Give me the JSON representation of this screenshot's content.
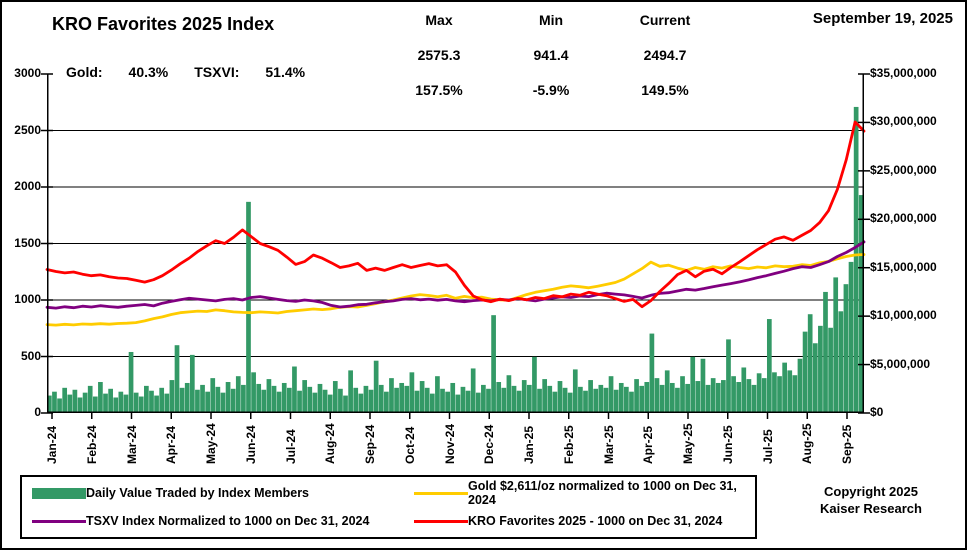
{
  "header": {
    "title": "KRO Favorites 2025 Index",
    "date": "September 19, 2025",
    "perf": {
      "gold_label": "Gold:",
      "gold_value": "40.3%",
      "tsxvi_label": "TSXVI:",
      "tsxvi_value": "51.4%"
    },
    "stats": {
      "max": {
        "header": "Max",
        "value": "2575.3",
        "percent": "157.5%"
      },
      "min": {
        "header": "Min",
        "value": "941.4",
        "percent": "-5.9%"
      },
      "current": {
        "header": "Current",
        "value": "2494.7",
        "percent": "149.5%"
      }
    }
  },
  "footer": {
    "copyright_line1": "Copyright 2025",
    "copyright_line2": "Kaiser Research"
  },
  "chart_data": {
    "type": "combo",
    "title": "KRO Favorites 2025 Index",
    "grid": "horizontal",
    "left_axis": {
      "min": 0,
      "max": 3000,
      "step": 500,
      "tick_labels": [
        "3000",
        "2500",
        "2000",
        "1500",
        "1000",
        "500",
        "0"
      ]
    },
    "right_axis": {
      "min": 0,
      "max": 35000000,
      "step": 5000000,
      "tick_labels": [
        "$35,000,000",
        "$30,000,000",
        "$25,000,000",
        "$20,000,000",
        "$15,000,000",
        "$10,000,000",
        "$5,000,000",
        "$0"
      ]
    },
    "x_axis": {
      "month_labels": [
        "Jan-24",
        "Feb-24",
        "Mar-24",
        "Apr-24",
        "May-24",
        "Jun-24",
        "Jul-24",
        "Aug-24",
        "Sep-24",
        "Oct-24",
        "Nov-24",
        "Dec-24",
        "Jan-25",
        "Feb-25",
        "Mar-25",
        "Apr-25",
        "May-25",
        "Jun-25",
        "Jul-25",
        "Aug-25",
        "Sep-25"
      ]
    },
    "series": [
      {
        "name": "Daily Value Traded by Index Members",
        "type": "bar",
        "axis": "right",
        "color": "#339966",
        "values_millions": [
          1.8,
          2.2,
          1.5,
          2.6,
          1.9,
          2.4,
          1.6,
          2.1,
          2.8,
          1.7,
          3.2,
          2.0,
          2.5,
          1.6,
          2.2,
          1.9,
          6.3,
          2.1,
          1.7,
          2.8,
          2.3,
          1.8,
          2.6,
          2.0,
          3.4,
          7.0,
          2.6,
          3.1,
          6.0,
          2.4,
          2.9,
          2.2,
          3.6,
          2.7,
          2.1,
          3.2,
          2.5,
          3.8,
          2.9,
          21.8,
          4.2,
          3.0,
          2.4,
          3.5,
          2.8,
          2.2,
          3.1,
          2.6,
          4.8,
          2.3,
          3.4,
          2.7,
          2.1,
          3.0,
          2.4,
          1.9,
          3.3,
          2.5,
          1.8,
          4.4,
          2.6,
          2.0,
          2.8,
          2.4,
          5.4,
          2.9,
          2.2,
          3.6,
          2.6,
          3.1,
          2.8,
          4.2,
          2.3,
          3.3,
          2.6,
          2.0,
          3.8,
          2.5,
          2.2,
          3.1,
          1.9,
          2.7,
          2.3,
          4.6,
          2.1,
          2.9,
          2.5,
          10.1,
          3.2,
          2.6,
          3.9,
          2.8,
          2.3,
          3.4,
          2.9,
          5.8,
          2.5,
          3.5,
          2.8,
          2.2,
          3.3,
          2.6,
          2.1,
          4.5,
          2.7,
          2.3,
          3.4,
          2.5,
          2.9,
          2.6,
          3.8,
          2.4,
          3.1,
          2.7,
          2.2,
          3.5,
          2.8,
          3.2,
          8.2,
          3.6,
          2.9,
          4.4,
          3.1,
          2.6,
          3.8,
          3.0,
          5.8,
          3.3,
          5.6,
          2.9,
          3.6,
          3.1,
          3.4,
          7.6,
          3.8,
          3.2,
          4.7,
          3.5,
          2.9,
          4.1,
          3.6,
          9.7,
          4.2,
          3.8,
          5.2,
          4.4,
          3.9,
          5.6,
          8.4,
          10.2,
          7.2,
          9.0,
          12.5,
          8.8,
          14.0,
          10.5,
          13.3,
          15.6,
          31.6,
          22.5
        ]
      },
      {
        "name": "Gold $2,611/oz normalized to 1000 on Dec 31, 2024",
        "type": "line",
        "axis": "left",
        "color": "#FFCC00",
        "values": [
          782,
          778,
          785,
          780,
          788,
          785,
          790,
          786,
          792,
          795,
          800,
          815,
          835,
          850,
          872,
          888,
          895,
          902,
          898,
          912,
          905,
          895,
          890,
          888,
          895,
          890,
          885,
          898,
          905,
          912,
          920,
          915,
          922,
          935,
          942,
          938,
          952,
          968,
          985,
          1000,
          1018,
          1035,
          1048,
          1040,
          1028,
          1042,
          1015,
          1032,
          1020,
          1025,
          1008,
          1002,
          998,
          1022,
          1048,
          1068,
          1082,
          1095,
          1112,
          1125,
          1118,
          1108,
          1122,
          1138,
          1155,
          1185,
          1232,
          1278,
          1335,
          1298,
          1308,
          1282,
          1262,
          1288,
          1272,
          1295,
          1282,
          1302,
          1288,
          1278,
          1292,
          1285,
          1302,
          1295,
          1298,
          1312,
          1305,
          1328,
          1342,
          1365,
          1385,
          1398,
          1403
        ]
      },
      {
        "name": "TSXV Index Normalized to 1000 on Dec 31, 2024",
        "type": "line",
        "axis": "left",
        "color": "#800080",
        "values": [
          935,
          928,
          940,
          932,
          945,
          938,
          950,
          942,
          935,
          945,
          952,
          960,
          948,
          972,
          988,
          1002,
          1015,
          1008,
          1000,
          992,
          1005,
          1012,
          1000,
          1022,
          1030,
          1018,
          1005,
          995,
          988,
          1000,
          992,
          978,
          952,
          938,
          945,
          958,
          962,
          975,
          985,
          992,
          1005,
          1012,
          1002,
          1008,
          998,
          1005,
          992,
          985,
          995,
          1000,
          992,
          1005,
          1000,
          1012,
          1002,
          992,
          1008,
          1018,
          1028,
          1022,
          1035,
          1030,
          1048,
          1060,
          1052,
          1045,
          1032,
          1018,
          1042,
          1058,
          1065,
          1080,
          1095,
          1088,
          1102,
          1118,
          1132,
          1145,
          1160,
          1178,
          1198,
          1215,
          1235,
          1255,
          1278,
          1295,
          1288,
          1312,
          1340,
          1385,
          1420,
          1465,
          1514
        ]
      },
      {
        "name": "KRO Favorites 2025 - 1000 on Dec 31, 2024",
        "type": "line",
        "axis": "left",
        "color": "#FF0000",
        "values": [
          1270,
          1252,
          1240,
          1248,
          1228,
          1215,
          1222,
          1205,
          1195,
          1190,
          1175,
          1158,
          1180,
          1215,
          1265,
          1320,
          1370,
          1430,
          1480,
          1525,
          1500,
          1555,
          1620,
          1560,
          1500,
          1472,
          1440,
          1380,
          1315,
          1340,
          1398,
          1370,
          1330,
          1288,
          1302,
          1325,
          1262,
          1282,
          1262,
          1288,
          1312,
          1288,
          1305,
          1322,
          1302,
          1312,
          1248,
          1130,
          1035,
          1002,
          985,
          1008,
          995,
          1015,
          1002,
          1022,
          1012,
          1038,
          1028,
          1052,
          1042,
          1068,
          1052,
          1038,
          1012,
          988,
          1005,
          941,
          995,
          1075,
          1145,
          1225,
          1262,
          1205,
          1255,
          1272,
          1232,
          1288,
          1338,
          1392,
          1445,
          1492,
          1538,
          1558,
          1528,
          1572,
          1615,
          1685,
          1790,
          1980,
          2240,
          2575,
          2495
        ]
      }
    ],
    "legend_position": "bottom-box",
    "summary": {
      "max": 2575.3,
      "min": 941.4,
      "current": 2494.7,
      "max_pct": "157.5%",
      "min_pct": "-5.9%",
      "current_pct": "149.5%",
      "as_of": "September 19, 2025"
    }
  }
}
